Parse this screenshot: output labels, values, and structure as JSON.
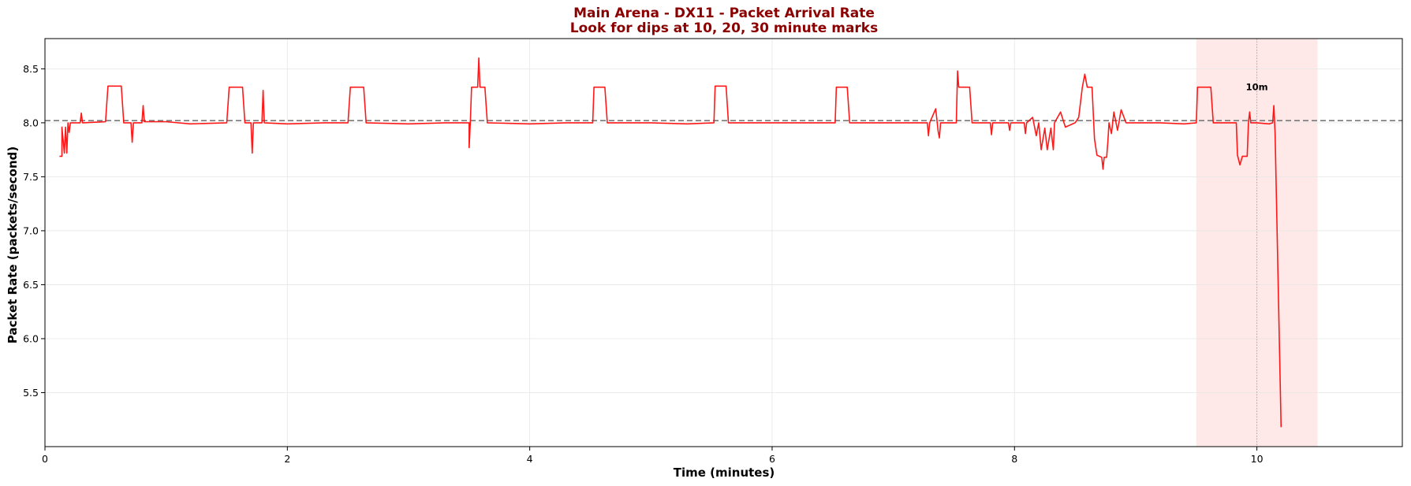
{
  "chart_data": {
    "type": "line",
    "title": "Main Arena - DX11 - Packet Arrival Rate",
    "subtitle": "Look for dips at 10, 20, 30 minute marks",
    "xlabel": "Time (minutes)",
    "ylabel": "Packet Rate (packets/second)",
    "xlim": [
      0,
      11.2
    ],
    "ylim": [
      5.0,
      8.78
    ],
    "xticks": [
      0,
      2,
      4,
      6,
      8,
      10
    ],
    "xtick_labels": [
      "0",
      "2",
      "4",
      "6",
      "8",
      "10"
    ],
    "yticks": [
      5.5,
      6.0,
      6.5,
      7.0,
      7.5,
      8.0,
      8.5
    ],
    "ytick_labels": [
      "5.5",
      "6.0",
      "6.5",
      "7.0",
      "7.5",
      "8.0",
      "8.5"
    ],
    "grid": true,
    "reference_line": {
      "y": 8.02,
      "style": "dashed",
      "color": "#808080"
    },
    "highlight_band": {
      "x_start": 9.5,
      "x_end": 10.5,
      "color": "#ffcccc"
    },
    "marker_line": {
      "x": 10.0,
      "style": "dotted",
      "color": "#aaaaaa"
    },
    "annotations": [
      {
        "text": "10m",
        "x": 10.0,
        "y": 8.33
      }
    ],
    "series": [
      {
        "color": "#ff0000",
        "points": [
          [
            0.12,
            7.69
          ],
          [
            0.14,
            7.69
          ],
          [
            0.14,
            7.96
          ],
          [
            0.16,
            7.72
          ],
          [
            0.17,
            7.96
          ],
          [
            0.18,
            7.72
          ],
          [
            0.19,
            8.0
          ],
          [
            0.2,
            7.91
          ],
          [
            0.21,
            8.0
          ],
          [
            0.29,
            8.0
          ],
          [
            0.3,
            8.09
          ],
          [
            0.31,
            8.0
          ],
          [
            0.5,
            8.01
          ],
          [
            0.52,
            8.34
          ],
          [
            0.63,
            8.34
          ],
          [
            0.65,
            8.0
          ],
          [
            0.71,
            8.0
          ],
          [
            0.72,
            7.82
          ],
          [
            0.73,
            8.0
          ],
          [
            0.8,
            8.0
          ],
          [
            0.81,
            8.16
          ],
          [
            0.82,
            8.01
          ],
          [
            1.0,
            8.01
          ],
          [
            1.2,
            7.99
          ],
          [
            1.5,
            8.0
          ],
          [
            1.52,
            8.33
          ],
          [
            1.63,
            8.33
          ],
          [
            1.65,
            8.0
          ],
          [
            1.7,
            8.0
          ],
          [
            1.71,
            7.72
          ],
          [
            1.72,
            8.0
          ],
          [
            1.79,
            8.0
          ],
          [
            1.8,
            8.3
          ],
          [
            1.81,
            8.0
          ],
          [
            2.0,
            7.99
          ],
          [
            2.3,
            8.0
          ],
          [
            2.5,
            8.0
          ],
          [
            2.52,
            8.33
          ],
          [
            2.63,
            8.33
          ],
          [
            2.65,
            8.0
          ],
          [
            3.0,
            7.99
          ],
          [
            3.3,
            8.0
          ],
          [
            3.5,
            8.0
          ],
          [
            3.5,
            7.77
          ],
          [
            3.51,
            8.0
          ],
          [
            3.52,
            8.33
          ],
          [
            3.57,
            8.33
          ],
          [
            3.58,
            8.6
          ],
          [
            3.59,
            8.33
          ],
          [
            3.63,
            8.33
          ],
          [
            3.65,
            8.0
          ],
          [
            4.0,
            7.99
          ],
          [
            4.3,
            8.0
          ],
          [
            4.52,
            8.0
          ],
          [
            4.53,
            8.33
          ],
          [
            4.62,
            8.33
          ],
          [
            4.64,
            8.0
          ],
          [
            5.0,
            8.0
          ],
          [
            5.3,
            7.99
          ],
          [
            5.52,
            8.0
          ],
          [
            5.53,
            8.34
          ],
          [
            5.62,
            8.34
          ],
          [
            5.64,
            8.0
          ],
          [
            6.0,
            8.0
          ],
          [
            6.3,
            8.0
          ],
          [
            6.52,
            8.0
          ],
          [
            6.53,
            8.33
          ],
          [
            6.62,
            8.33
          ],
          [
            6.64,
            8.0
          ],
          [
            7.0,
            8.0
          ],
          [
            7.28,
            8.0
          ],
          [
            7.29,
            7.88
          ],
          [
            7.3,
            8.0
          ],
          [
            7.35,
            8.13
          ],
          [
            7.37,
            7.92
          ],
          [
            7.38,
            7.86
          ],
          [
            7.39,
            8.0
          ],
          [
            7.52,
            8.0
          ],
          [
            7.53,
            8.48
          ],
          [
            7.54,
            8.33
          ],
          [
            7.63,
            8.33
          ],
          [
            7.65,
            8.0
          ],
          [
            7.8,
            8.0
          ],
          [
            7.81,
            7.89
          ],
          [
            7.82,
            8.0
          ],
          [
            7.95,
            8.0
          ],
          [
            7.96,
            7.93
          ],
          [
            7.97,
            8.0
          ],
          [
            8.08,
            8.0
          ],
          [
            8.09,
            7.9
          ],
          [
            8.1,
            8.0
          ],
          [
            8.15,
            8.05
          ],
          [
            8.18,
            7.88
          ],
          [
            8.2,
            8.0
          ],
          [
            8.22,
            7.75
          ],
          [
            8.25,
            7.95
          ],
          [
            8.27,
            7.75
          ],
          [
            8.3,
            7.95
          ],
          [
            8.32,
            7.75
          ],
          [
            8.33,
            8.0
          ],
          [
            8.38,
            8.1
          ],
          [
            8.42,
            7.96
          ],
          [
            8.5,
            8.0
          ],
          [
            8.53,
            8.05
          ],
          [
            8.56,
            8.33
          ],
          [
            8.58,
            8.45
          ],
          [
            8.6,
            8.33
          ],
          [
            8.64,
            8.33
          ],
          [
            8.66,
            7.85
          ],
          [
            8.68,
            7.7
          ],
          [
            8.72,
            7.68
          ],
          [
            8.73,
            7.57
          ],
          [
            8.74,
            7.68
          ],
          [
            8.76,
            7.68
          ],
          [
            8.77,
            7.82
          ],
          [
            8.78,
            8.0
          ],
          [
            8.8,
            7.9
          ],
          [
            8.82,
            8.1
          ],
          [
            8.85,
            7.93
          ],
          [
            8.88,
            8.12
          ],
          [
            8.92,
            8.0
          ],
          [
            9.2,
            8.0
          ],
          [
            9.4,
            7.99
          ],
          [
            9.5,
            8.0
          ],
          [
            9.51,
            8.33
          ],
          [
            9.62,
            8.33
          ],
          [
            9.64,
            8.0
          ],
          [
            9.83,
            8.0
          ],
          [
            9.84,
            7.7
          ],
          [
            9.86,
            7.61
          ],
          [
            9.88,
            7.69
          ],
          [
            9.92,
            7.69
          ],
          [
            9.93,
            8.0
          ],
          [
            9.94,
            8.1
          ],
          [
            9.95,
            8.0
          ],
          [
            10.0,
            8.0
          ],
          [
            10.1,
            7.99
          ],
          [
            10.13,
            8.0
          ],
          [
            10.14,
            8.16
          ],
          [
            10.15,
            7.9
          ],
          [
            10.2,
            5.18
          ]
        ]
      }
    ]
  }
}
